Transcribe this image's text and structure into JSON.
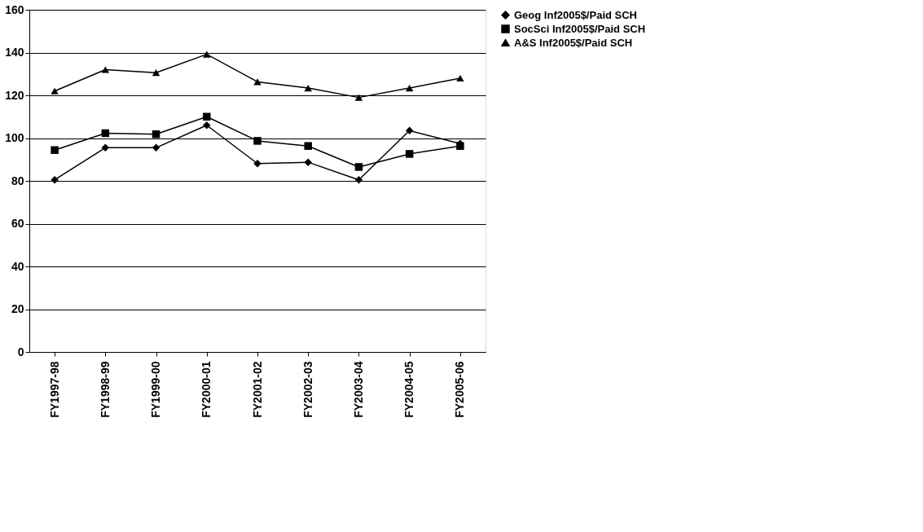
{
  "chart_data": {
    "type": "line",
    "categories": [
      "FY1997-98",
      "FY1998-99",
      "FY1999-00",
      "FY2000-01",
      "FY2001-02",
      "FY2002-03",
      "FY2003-04",
      "FY2004-05",
      "FY2005-06"
    ],
    "series": [
      {
        "name": "Geog Inf2005$/Paid SCH",
        "color": "#000000",
        "marker": "diamond",
        "values": [
          80.5,
          95.5,
          95.5,
          106,
          88.1,
          88.7,
          80.5,
          103.5,
          97.4
        ]
      },
      {
        "name": "SocSci Inf2005$/Paid SCH",
        "color": "#000000",
        "marker": "square",
        "values": [
          94.4,
          102.3,
          101.8,
          110,
          98.7,
          96.3,
          86.5,
          92.6,
          96.3
        ]
      },
      {
        "name": "A&S Inf2005$/Paid SCH",
        "color": "#000000",
        "marker": "triangle",
        "values": [
          122,
          132,
          130.6,
          139.2,
          126.3,
          123.4,
          119,
          123.4,
          128
        ]
      }
    ],
    "ylim": [
      0,
      160
    ],
    "yticks": [
      0,
      20,
      40,
      60,
      80,
      100,
      120,
      140,
      160
    ],
    "grid": "y",
    "legend": "right",
    "line_style": "solid"
  }
}
